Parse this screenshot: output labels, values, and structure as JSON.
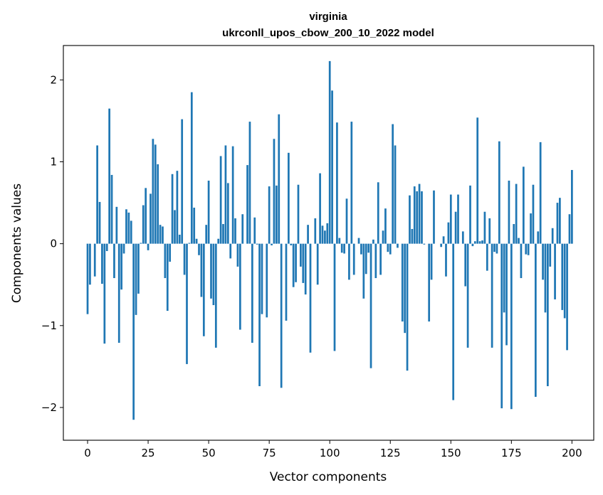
{
  "chart_data": {
    "type": "bar",
    "title": "virginia",
    "subtitle": "ukrconll_upos_cbow_200_10_2022 model",
    "xlabel": "Vector components",
    "ylabel": "Components values",
    "xlim": [
      -10,
      209
    ],
    "ylim": [
      -2.4,
      2.42
    ],
    "xticks": [
      0,
      25,
      50,
      75,
      100,
      125,
      150,
      175,
      200
    ],
    "yticks": [
      -2,
      -1,
      0,
      1,
      2
    ],
    "ytick_labels": [
      "−2",
      "−1",
      "0",
      "1",
      "2"
    ],
    "grid": false,
    "bar_color": "#1f77b4",
    "values": [
      -0.86,
      -0.5,
      0.0,
      -0.4,
      1.2,
      0.51,
      -0.49,
      -1.22,
      -0.09,
      1.65,
      0.84,
      -0.42,
      0.45,
      -1.21,
      -0.56,
      -0.12,
      0.42,
      0.38,
      0.28,
      -2.15,
      -0.87,
      -0.61,
      0.01,
      0.47,
      0.68,
      -0.08,
      0.61,
      1.28,
      1.21,
      0.97,
      0.23,
      0.21,
      -0.42,
      -0.82,
      -0.22,
      0.85,
      0.41,
      0.89,
      0.11,
      1.52,
      -0.38,
      -1.47,
      0.01,
      1.85,
      0.44,
      0.06,
      -0.14,
      -0.65,
      -1.13,
      0.23,
      0.77,
      -0.67,
      -0.75,
      -1.27,
      0.06,
      1.07,
      0.24,
      1.2,
      0.74,
      -0.18,
      1.19,
      0.31,
      -0.28,
      -1.05,
      0.36,
      0.0,
      0.96,
      1.49,
      -1.21,
      0.32,
      -0.01,
      -1.74,
      -0.86,
      0.0,
      -0.9,
      0.7,
      -0.02,
      1.28,
      0.71,
      1.58,
      -1.76,
      0.0,
      -0.94,
      1.11,
      -0.02,
      -0.53,
      -0.47,
      0.72,
      -0.28,
      -0.48,
      -0.62,
      0.23,
      -1.33,
      0.0,
      0.31,
      -0.5,
      0.86,
      0.22,
      0.16,
      0.25,
      2.23,
      1.87,
      -1.31,
      1.48,
      0.07,
      -0.11,
      -0.12,
      0.55,
      -0.44,
      1.49,
      -0.38,
      0.0,
      0.07,
      -0.13,
      -0.67,
      -0.37,
      -0.11,
      -1.52,
      0.05,
      -0.42,
      0.75,
      -0.38,
      0.16,
      0.43,
      -0.1,
      -0.13,
      1.46,
      1.2,
      -0.05,
      0.0,
      -0.95,
      -1.09,
      -1.55,
      0.59,
      0.18,
      0.7,
      0.64,
      0.73,
      0.64,
      -0.01,
      0.0,
      -0.95,
      -0.44,
      0.65,
      0.0,
      0.0,
      -0.04,
      0.09,
      -0.4,
      0.26,
      0.6,
      -1.91,
      0.39,
      0.6,
      0.0,
      0.15,
      -0.52,
      -1.27,
      0.71,
      -0.03,
      0.03,
      1.54,
      0.03,
      0.04,
      0.39,
      -0.33,
      0.31,
      -1.27,
      -0.1,
      -0.12,
      1.25,
      -2.01,
      -0.84,
      -1.24,
      0.77,
      -2.02,
      0.24,
      0.73,
      0.07,
      -0.42,
      0.94,
      -0.13,
      -0.14,
      0.37,
      0.72,
      -1.87,
      0.15,
      1.24,
      -0.44,
      -0.84,
      -1.74,
      -0.28,
      0.19,
      -0.68,
      0.5,
      0.56,
      -0.81,
      -0.91,
      -1.3,
      0.36,
      0.9
    ]
  }
}
